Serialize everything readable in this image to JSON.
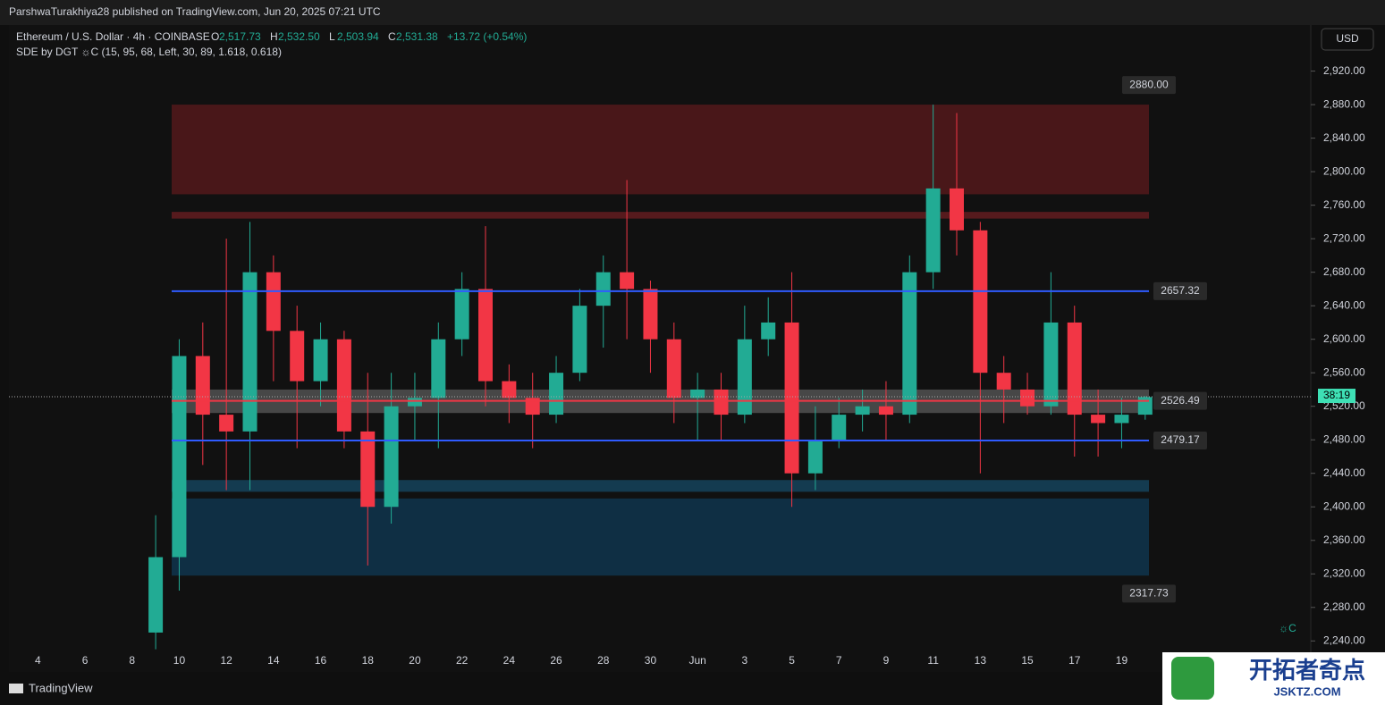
{
  "header": {
    "published": "ParshwaTurakhiya28 published on TradingView.com, Jun 20, 2025 07:21 UTC",
    "symbol": "Ethereum / U.S. Dollar · 4h · COINBASE",
    "ohlc": [
      {
        "key": "O",
        "value": "2,517.73"
      },
      {
        "key": "H",
        "value": "2,532.50"
      },
      {
        "key": "L",
        "value": "2,503.94"
      },
      {
        "key": "C",
        "value": "2,531.38"
      }
    ],
    "change": "+13.72 (+0.54%)",
    "indicator": "SDE by DGT ☼C (15, 95, 68, Left, 30, 89, 1.618, 0.618)",
    "currency": "USD",
    "countdown": "38:19",
    "brand": "TradingView",
    "corner_mark": "☼C"
  },
  "watermark": {
    "title": "开拓者奇点",
    "site": "JSKTZ.COM"
  },
  "chart_data": {
    "type": "candlestick",
    "up_color": "#22ab94",
    "down_color": "#f23645",
    "categories": [
      null,
      "4",
      null,
      "6",
      null,
      "8",
      null,
      "10",
      null,
      "12",
      null,
      "14",
      null,
      "16",
      null,
      "18",
      null,
      "20",
      null,
      "22",
      null,
      "24",
      null,
      "26",
      null,
      "28",
      null,
      "30",
      null,
      "Jun",
      null,
      "3",
      null,
      "5",
      null,
      "7",
      null,
      "9",
      null,
      "11",
      null,
      "13",
      null,
      "15",
      null,
      "17",
      null,
      "19",
      null
    ],
    "open": [
      null,
      null,
      null,
      null,
      null,
      null,
      2250,
      2340,
      2580,
      2510,
      2490,
      2680,
      2610,
      2550,
      2600,
      2490,
      2400,
      2520,
      2530,
      2600,
      2660,
      2550,
      2530,
      2510,
      2560,
      2640,
      2680,
      2660,
      2600,
      2530,
      2540,
      2510,
      2600,
      2620,
      2440,
      2480,
      2510,
      2520,
      2510,
      2680,
      2780,
      2730,
      2560,
      2540,
      2520,
      2620,
      2510,
      2500,
      2510
    ],
    "high": [
      null,
      null,
      null,
      null,
      null,
      null,
      2390,
      2600,
      2620,
      2720,
      2740,
      2700,
      2640,
      2620,
      2610,
      2560,
      2560,
      2560,
      2620,
      2680,
      2735,
      2570,
      2560,
      2580,
      2660,
      2700,
      2790,
      2670,
      2620,
      2560,
      2560,
      2640,
      2650,
      2680,
      2520,
      2530,
      2540,
      2550,
      2700,
      2880,
      2870,
      2740,
      2580,
      2560,
      2680,
      2640,
      2540,
      2530,
      2532
    ],
    "low": [
      null,
      null,
      null,
      null,
      null,
      null,
      2230,
      2300,
      2450,
      2420,
      2420,
      2550,
      2470,
      2520,
      2470,
      2330,
      2380,
      2480,
      2470,
      2580,
      2520,
      2500,
      2470,
      2500,
      2550,
      2590,
      2600,
      2560,
      2500,
      2480,
      2480,
      2500,
      2580,
      2400,
      2420,
      2470,
      2490,
      2480,
      2500,
      2660,
      2700,
      2440,
      2500,
      2510,
      2510,
      2460,
      2460,
      2470,
      2504
    ],
    "close": [
      null,
      null,
      null,
      null,
      null,
      null,
      2340,
      2580,
      2510,
      2490,
      2680,
      2610,
      2550,
      2600,
      2490,
      2400,
      2520,
      2530,
      2600,
      2660,
      2550,
      2530,
      2510,
      2560,
      2640,
      2680,
      2660,
      2600,
      2530,
      2540,
      2510,
      2600,
      2620,
      2440,
      2480,
      2510,
      2520,
      2510,
      2680,
      2780,
      2730,
      2560,
      2540,
      2520,
      2620,
      2510,
      2500,
      2510,
      2531
    ],
    "ylim": [
      2203,
      2975
    ],
    "yticks": [
      {
        "value": 2240,
        "label": "2,240.00"
      },
      {
        "value": 2280,
        "label": "2,280.00"
      },
      {
        "value": 2320,
        "label": "2,320.00"
      },
      {
        "value": 2360,
        "label": "2,360.00"
      },
      {
        "value": 2400,
        "label": "2,400.00"
      },
      {
        "value": 2440,
        "label": "2,440.00"
      },
      {
        "value": 2480,
        "label": "2,480.00"
      },
      {
        "value": 2520,
        "label": "2,520.00"
      },
      {
        "value": 2560,
        "label": "2,560.00"
      },
      {
        "value": 2600,
        "label": "2,600.00"
      },
      {
        "value": 2640,
        "label": "2,640.00"
      },
      {
        "value": 2680,
        "label": "2,680.00"
      },
      {
        "value": 2720,
        "label": "2,720.00"
      },
      {
        "value": 2760,
        "label": "2,760.00"
      },
      {
        "value": 2800,
        "label": "2,800.00"
      },
      {
        "value": 2840,
        "label": "2,840.00"
      },
      {
        "value": 2880,
        "label": "2,880.00"
      },
      {
        "value": 2920,
        "label": "2,920.00"
      }
    ],
    "zones": [
      {
        "from": 2773,
        "to": 2880,
        "color": "#5c1a1c"
      },
      {
        "from": 2744,
        "to": 2752,
        "color": "#6e1e22"
      },
      {
        "from": 2318,
        "to": 2410,
        "color": "#0f3a55"
      },
      {
        "from": 2418,
        "to": 2432,
        "color": "#164966"
      },
      {
        "from": 2512,
        "to": 2540,
        "color": "#5a5a5a"
      }
    ],
    "lines": [
      {
        "value": 2657.32,
        "color": "#2f5bff"
      },
      {
        "value": 2479.17,
        "color": "#2f5bff"
      },
      {
        "value": 2526.49,
        "color": "#f23645"
      }
    ],
    "price_labels": [
      {
        "value": 2880,
        "label": "2880.00",
        "position": "above"
      },
      {
        "value": 2657.32,
        "label": "2657.32",
        "position": "right"
      },
      {
        "value": 2526.49,
        "label": "2526.49",
        "position": "right"
      },
      {
        "value": 2479.17,
        "label": "2479.17",
        "position": "right"
      },
      {
        "value": 2317.73,
        "label": "2317.73",
        "position": "below"
      }
    ],
    "last_price": 2531.38
  }
}
